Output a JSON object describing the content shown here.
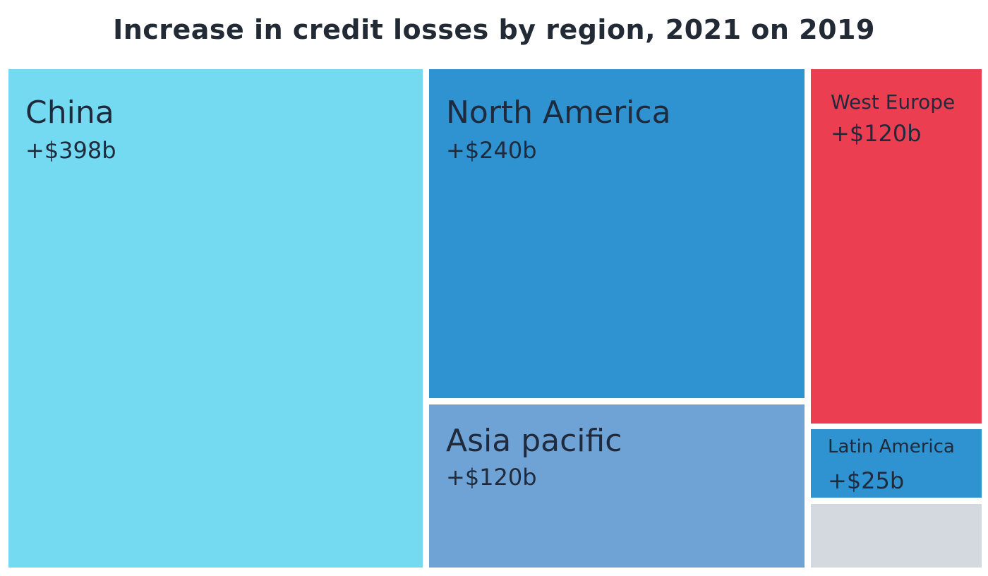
{
  "chart_data": {
    "type": "treemap",
    "title": "Increase in credit losses by region, 2021 on 2019",
    "items": [
      {
        "name": "China",
        "value_label": "+$398b",
        "value": 398,
        "color": "#74daf2"
      },
      {
        "name": "North America",
        "value_label": "+$240b",
        "value": 240,
        "color": "#2e93d0"
      },
      {
        "name": "Asia pacific",
        "value_label": "+$120b",
        "value": 120,
        "color": "#6fa3d6"
      },
      {
        "name": "West Europe",
        "value_label": "+$120b",
        "value": 120,
        "color": "#ec3e51"
      },
      {
        "name": "Latin America",
        "value_label": "+$25b",
        "value": 25,
        "color": "#2e93d0"
      },
      {
        "name": "",
        "value_label": "",
        "color": "#d3d9df"
      }
    ]
  }
}
